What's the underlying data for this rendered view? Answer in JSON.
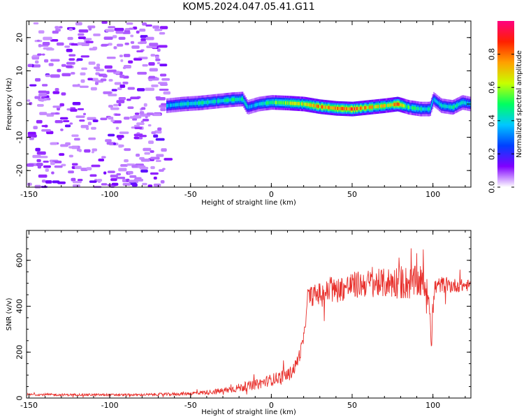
{
  "chart_data": [
    {
      "type": "heatmap",
      "title": "KOM5.2024.047.05.41.G11",
      "xlabel": "Height of straight line (km)",
      "ylabel": "Frequency (Hz)",
      "xlim": [
        -151.5,
        123.5
      ],
      "ylim": [
        -25,
        25
      ],
      "xticks": [
        -150,
        -100,
        -50,
        0,
        50,
        100
      ],
      "yticks": [
        -20,
        -10,
        0,
        10,
        20
      ],
      "colorbar": {
        "label": "Normalized spectral amplitude",
        "range": [
          0.0,
          1.0
        ],
        "ticks": [
          "0.0",
          "0.2",
          "0.4",
          "0.6",
          "0.8"
        ],
        "colormap": [
          "#ffffff",
          "#8000ff",
          "#0040ff",
          "#00c8ff",
          "#00ff60",
          "#c8ff00",
          "#ffa000",
          "#ff2000",
          "#ff0080"
        ]
      },
      "ridge": {
        "description_free": true,
        "points": [
          {
            "x": -65,
            "freq": -0.5,
            "amp": 0.35
          },
          {
            "x": -55,
            "freq": 0.0,
            "amp": 0.4
          },
          {
            "x": -45,
            "freq": 0.3,
            "amp": 0.45
          },
          {
            "x": -35,
            "freq": 0.8,
            "amp": 0.4
          },
          {
            "x": -25,
            "freq": 1.3,
            "amp": 0.45
          },
          {
            "x": -18,
            "freq": 1.5,
            "amp": 0.45
          },
          {
            "x": -15,
            "freq": -1.0,
            "amp": 0.35
          },
          {
            "x": -8,
            "freq": 0.0,
            "amp": 0.4
          },
          {
            "x": 0,
            "freq": 0.5,
            "amp": 0.5
          },
          {
            "x": 10,
            "freq": 0.3,
            "amp": 0.6
          },
          {
            "x": 20,
            "freq": 0.0,
            "amp": 0.65
          },
          {
            "x": 30,
            "freq": -0.8,
            "amp": 0.75
          },
          {
            "x": 40,
            "freq": -1.3,
            "amp": 0.8
          },
          {
            "x": 50,
            "freq": -1.5,
            "amp": 0.85
          },
          {
            "x": 60,
            "freq": -1.0,
            "amp": 0.7
          },
          {
            "x": 70,
            "freq": -0.5,
            "amp": 0.65
          },
          {
            "x": 78,
            "freq": 0.0,
            "amp": 0.75
          },
          {
            "x": 85,
            "freq": -1.0,
            "amp": 0.5
          },
          {
            "x": 92,
            "freq": -1.5,
            "amp": 0.45
          },
          {
            "x": 98,
            "freq": -1.5,
            "amp": 0.4
          },
          {
            "x": 100,
            "freq": 1.5,
            "amp": 0.35
          },
          {
            "x": 105,
            "freq": -0.5,
            "amp": 0.4
          },
          {
            "x": 112,
            "freq": -1.0,
            "amp": 0.45
          },
          {
            "x": 118,
            "freq": 0.5,
            "amp": 0.4
          },
          {
            "x": 123,
            "freq": 0.0,
            "amp": 0.4
          }
        ]
      }
    },
    {
      "type": "line",
      "xlabel": "Height of straight line (km)",
      "ylabel": "SNR (v/v)",
      "xlim": [
        -151.5,
        123.5
      ],
      "ylim": [
        0,
        730
      ],
      "xticks": [
        -150,
        -100,
        -50,
        0,
        50,
        100
      ],
      "yticks": [
        0,
        200,
        400,
        600
      ],
      "series": [
        {
          "color": "#e8302c",
          "x": [
            -151,
            -140,
            -130,
            -120,
            -110,
            -100,
            -90,
            -80,
            -70,
            -60,
            -50,
            -45,
            -40,
            -35,
            -30,
            -25,
            -20,
            -15,
            -10,
            -5,
            0,
            5,
            10,
            12,
            15,
            18,
            20,
            21,
            22,
            25,
            30,
            40,
            50,
            60,
            70,
            75,
            80,
            85,
            90,
            95,
            98,
            99,
            100,
            101,
            105,
            110,
            115,
            123
          ],
          "values": [
            15,
            15,
            14,
            15,
            14,
            14,
            14,
            14,
            16,
            17,
            20,
            23,
            25,
            28,
            32,
            38,
            45,
            50,
            58,
            68,
            80,
            90,
            100,
            110,
            140,
            200,
            260,
            300,
            440,
            445,
            455,
            470,
            490,
            500,
            500,
            505,
            505,
            500,
            505,
            495,
            420,
            230,
            350,
            480,
            495,
            490,
            490,
            490
          ],
          "noise_amplitude": [
            5,
            5,
            5,
            5,
            5,
            5,
            5,
            5,
            6,
            7,
            8,
            9,
            10,
            12,
            14,
            16,
            18,
            20,
            22,
            24,
            26,
            28,
            30,
            30,
            30,
            30,
            30,
            30,
            40,
            45,
            50,
            55,
            60,
            60,
            65,
            70,
            75,
            75,
            70,
            60,
            60,
            30,
            60,
            40,
            35,
            35,
            30,
            25
          ]
        }
      ]
    }
  ]
}
